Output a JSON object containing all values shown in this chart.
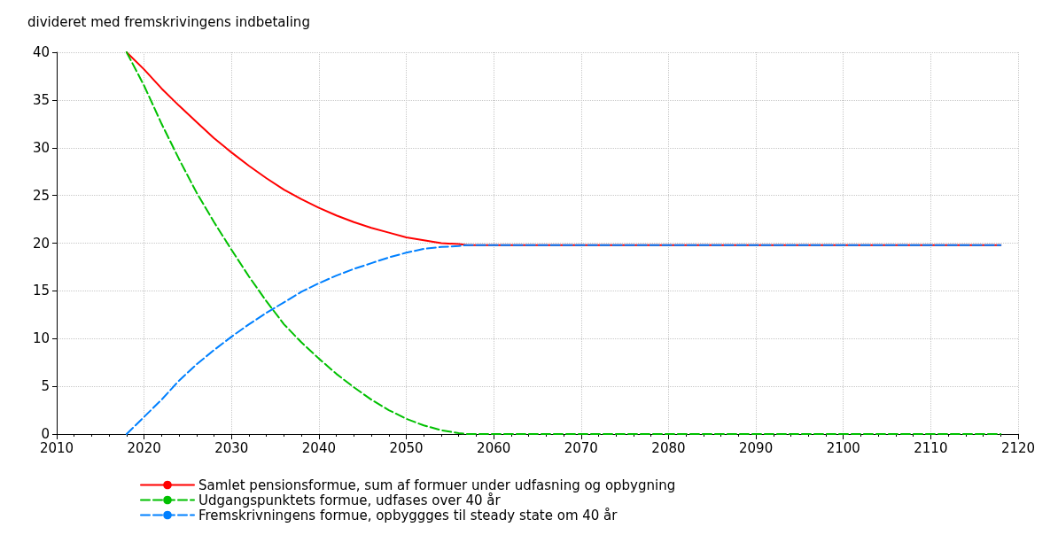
{
  "chart_data": {
    "type": "line",
    "ylabel": "divideret med fremskrivingens indbetaling",
    "xlim": [
      2010,
      2120
    ],
    "xticks": [
      {
        "value": 2010,
        "label": "2010"
      },
      {
        "value": 2020,
        "label": "2020"
      },
      {
        "value": 2030,
        "label": "2030"
      },
      {
        "value": 2040,
        "label": "2040"
      },
      {
        "value": 2050,
        "label": "2050"
      },
      {
        "value": 2060,
        "label": "2060"
      },
      {
        "value": 2070,
        "label": "2070"
      },
      {
        "value": 2080,
        "label": "2080"
      },
      {
        "value": 2090,
        "label": "2090"
      },
      {
        "value": 2100,
        "label": "2100"
      },
      {
        "value": 2110,
        "label": "2110"
      },
      {
        "value": 2120,
        "label": "2120"
      }
    ],
    "ylim": [
      0,
      40
    ],
    "yticks": [
      0,
      5,
      10,
      15,
      20,
      25,
      30,
      35,
      40
    ],
    "grid": true,
    "legend": "bottom",
    "marker": "none",
    "series": [
      {
        "name": "Samlet pensionsformue, sum af formuer under udfasning og opbygning",
        "color": "#ff0000",
        "line_style": "solid",
        "x": [
          2018,
          2020,
          2022,
          2024,
          2026,
          2028,
          2030,
          2032,
          2034,
          2036,
          2038,
          2040,
          2042,
          2044,
          2046,
          2048,
          2050,
          2052,
          2054,
          2056,
          2057,
          2118
        ],
        "values": [
          40,
          38.2,
          36.2,
          34.4,
          32.7,
          31,
          29.5,
          28.1,
          26.8,
          25.6,
          24.6,
          23.7,
          22.9,
          22.2,
          21.6,
          21.1,
          20.6,
          20.3,
          20,
          19.9,
          19.8,
          19.8
        ]
      },
      {
        "name": "Udgangspunktets formue, udfases over 40 år",
        "color": "#00c000",
        "line_style": "dashed",
        "x": [
          2018,
          2020,
          2022,
          2024,
          2026,
          2028,
          2030,
          2032,
          2034,
          2036,
          2038,
          2040,
          2042,
          2044,
          2046,
          2048,
          2050,
          2052,
          2054,
          2056,
          2057,
          2118
        ],
        "values": [
          40,
          36.5,
          32.5,
          28.8,
          25.3,
          22.2,
          19.3,
          16.5,
          13.9,
          11.5,
          9.6,
          7.9,
          6.3,
          4.9,
          3.6,
          2.5,
          1.6,
          0.9,
          0.4,
          0.1,
          0,
          0
        ]
      },
      {
        "name": "Fremskrivningens formue, opbyggges til steady state om 40 år",
        "color": "#0080ff",
        "line_style": "dashed",
        "x": [
          2018,
          2020,
          2022,
          2024,
          2026,
          2028,
          2030,
          2032,
          2034,
          2036,
          2038,
          2040,
          2042,
          2044,
          2046,
          2048,
          2050,
          2052,
          2054,
          2056,
          2057,
          2118
        ],
        "values": [
          0,
          1.8,
          3.6,
          5.6,
          7.3,
          8.8,
          10.2,
          11.5,
          12.7,
          13.8,
          14.9,
          15.8,
          16.6,
          17.3,
          17.9,
          18.5,
          19,
          19.4,
          19.6,
          19.7,
          19.8,
          19.8
        ]
      }
    ]
  }
}
